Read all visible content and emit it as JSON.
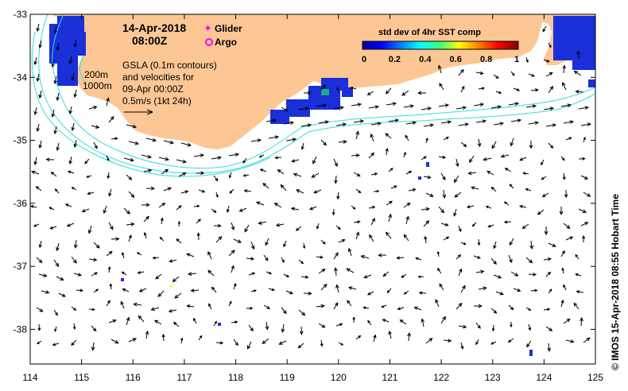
{
  "map": {
    "date": "14-Apr-2018",
    "time": "08:00Z",
    "legend": {
      "glider_label": "Glider",
      "argo_label": "Argo",
      "glider_color": "#ff00ff",
      "argo_color": "#ff00ff"
    },
    "gsla_line1": "GSLA (0.1m contours)",
    "gsla_line2": "and velocities for",
    "gsla_line3": "09-Apr 00:00Z",
    "scale_label": "0.5m/s (1kt 24h)",
    "depth_label_200": "200m",
    "depth_label_1000": "1000m",
    "credit": "© IMOS 15-Apr-2018 08:55 Hobart Time",
    "land_color": "#fcc794",
    "contour_color": "#33dddd",
    "lon_ticks": [
      "114",
      "115",
      "116",
      "117",
      "118",
      "119",
      "120",
      "121",
      "122",
      "123",
      "124",
      "125"
    ],
    "lat_ticks": [
      "-33",
      "-34",
      "-35",
      "-36",
      "-37",
      "-38"
    ],
    "lon_range": [
      114,
      125
    ],
    "lat_range": [
      -38.55,
      -33
    ]
  },
  "colorbar": {
    "title": "std dev of 4hr SST comp",
    "ticks": [
      "0",
      "0.2",
      "0.4",
      "0.6",
      "0.8",
      "1"
    ],
    "range": [
      0,
      1
    ]
  }
}
